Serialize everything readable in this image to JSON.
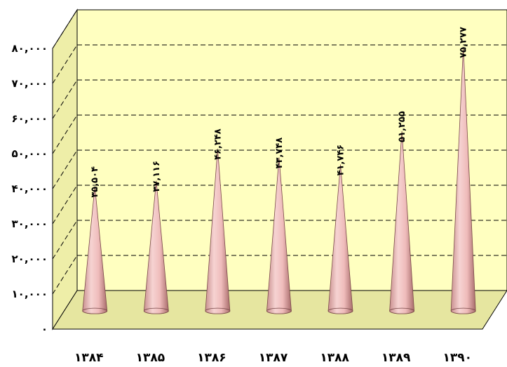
{
  "chart_data": {
    "type": "bar",
    "bar_shape": "cone",
    "categories": [
      "۱۳۸۴",
      "۱۳۸۵",
      "۱۳۸۶",
      "۱۳۸۷",
      "۱۳۸۸",
      "۱۳۸۹",
      "۱۳۹۰"
    ],
    "values": [
      35504,
      37116,
      46248,
      43748,
      41746,
      51255,
      75277
    ],
    "value_labels": [
      "۳۵,۵۰۴",
      "۳۷,۱۱۶",
      "۴۶,۲۴۸",
      "۴۳,۷۴۸",
      "۴۱,۷۴۶",
      "۵۱,۲۵۵",
      "۷۵,۲۷۷"
    ],
    "ylim": [
      0,
      80000
    ],
    "yticks": [
      0,
      10000,
      20000,
      30000,
      40000,
      50000,
      60000,
      70000,
      80000
    ],
    "ytick_labels": [
      "۰",
      "۱۰,۰۰۰",
      "۲۰,۰۰۰",
      "۳۰,۰۰۰",
      "۴۰,۰۰۰",
      "۵۰,۰۰۰",
      "۶۰,۰۰۰",
      "۷۰,۰۰۰",
      "۸۰,۰۰۰"
    ],
    "title": "",
    "xlabel": "",
    "ylabel": "",
    "grid": true,
    "gridline_style": "dashed",
    "legend": "none",
    "colors": {
      "wall": "#ffffc0",
      "cone_light": "#f4cccc",
      "cone_dark": "#c9908f",
      "cone_stroke": "#7a4a4a",
      "grid": "#000000"
    }
  }
}
